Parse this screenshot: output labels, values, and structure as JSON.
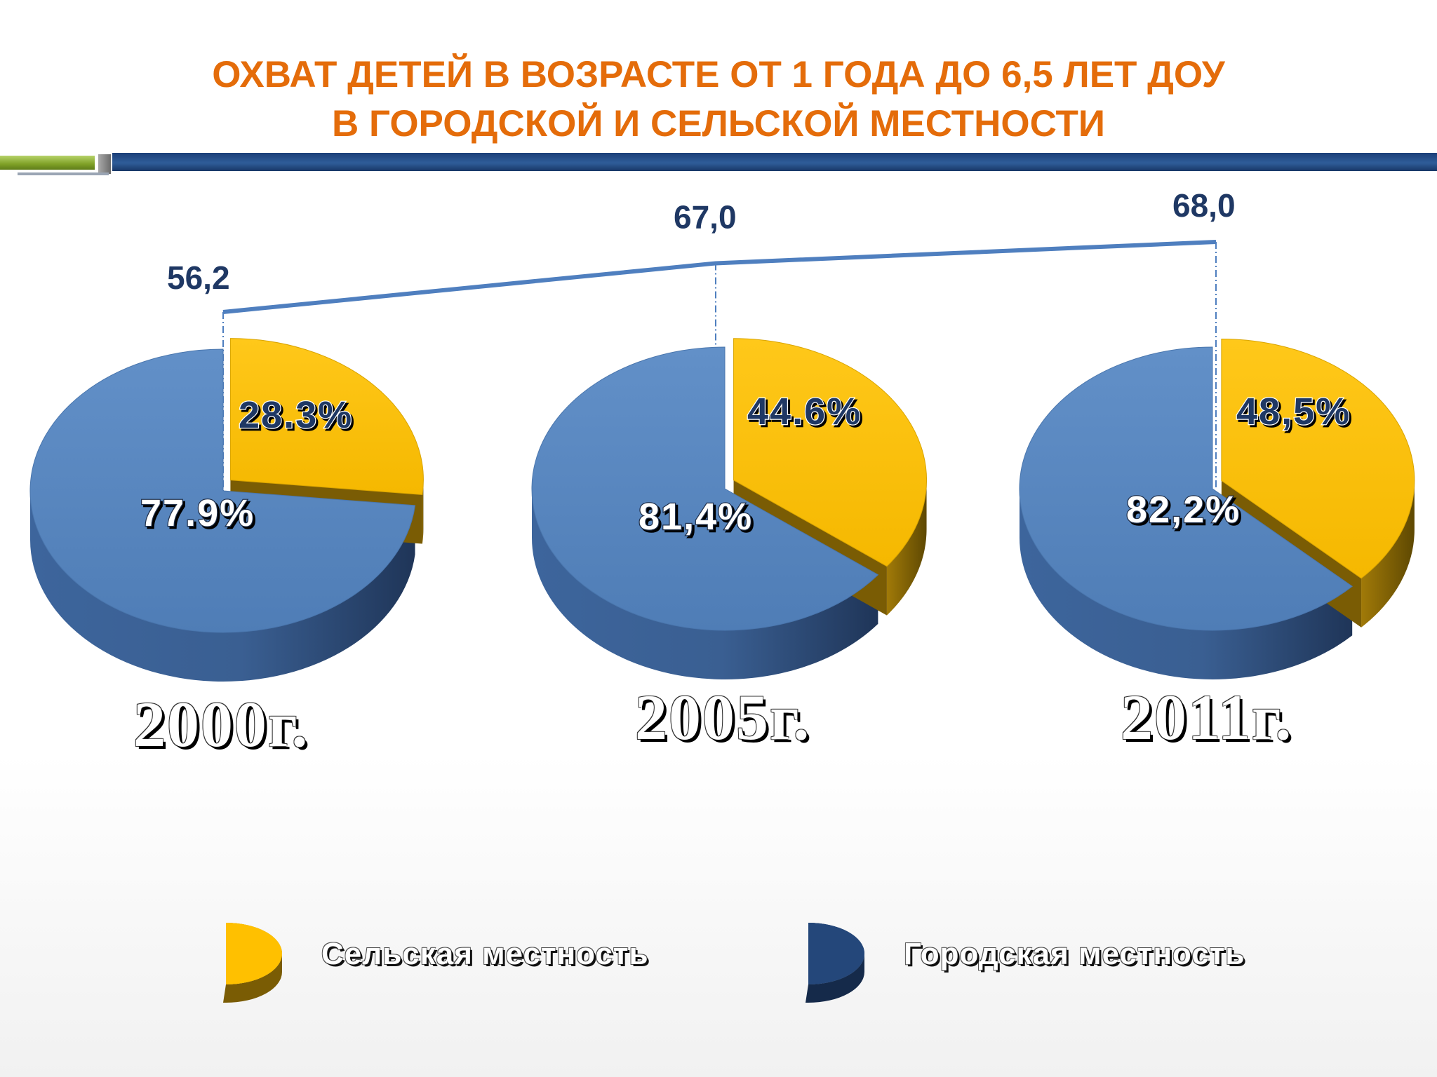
{
  "title": {
    "line1": "ОХВАТ ДЕТЕЙ В ВОЗРАСТЕ ОТ 1 ГОДА ДО 6,5 ЛЕТ ДОУ",
    "line2": "В ГОРОДСКОЙ И СЕЛЬСКОЙ МЕСТНОСТИ"
  },
  "colors": {
    "title": "#e46c0a",
    "rural": "#ffc000",
    "urban": "#5b87c0",
    "line": "#4f7fbf",
    "value_text": "#1f3864"
  },
  "chart_data": [
    {
      "type": "line",
      "x": [
        "2000г.",
        "2005г.",
        "2011г."
      ],
      "series": [
        {
          "values": [
            56.2,
            67.0,
            68.0
          ],
          "labels": [
            "56,2",
            "67,0",
            "68,0"
          ]
        }
      ]
    },
    {
      "type": "pie",
      "categories": [
        "Сельская местность",
        "Городская местность"
      ],
      "pies": [
        {
          "year": "2000г.",
          "values": [
            28.3,
            77.9
          ],
          "labels": [
            "28.3%",
            "77.9%"
          ]
        },
        {
          "year": "2005г.",
          "values": [
            44.6,
            81.4
          ],
          "labels": [
            "44.6%",
            "81,4%"
          ]
        },
        {
          "year": "2011г.",
          "values": [
            48.5,
            82.2
          ],
          "labels": [
            "48,5%",
            "82,2%"
          ]
        }
      ]
    }
  ],
  "legend": {
    "rural": "Сельская местность",
    "urban": "Городская местность"
  }
}
